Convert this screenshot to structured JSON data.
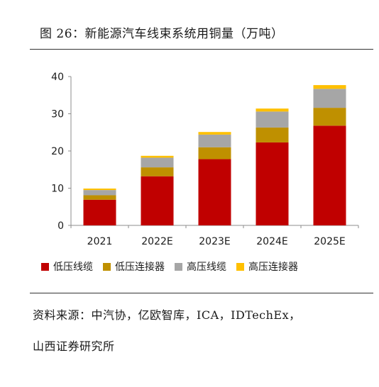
{
  "figure_title": "图 26：新能源汽车线束系统用铜量（万吨）",
  "source": {
    "line1": "资料来源：中汽协，亿欧智库，ICA，IDTechEx，",
    "line2": "山西证券研究所"
  },
  "chart_data": {
    "type": "bar",
    "stacked": true,
    "categories": [
      "2021",
      "2022E",
      "2023E",
      "2024E",
      "2025E"
    ],
    "series": [
      {
        "name": "低压线缆",
        "color": "#C00000",
        "values": [
          6.9,
          13.2,
          17.8,
          22.3,
          26.8
        ]
      },
      {
        "name": "低压连接器",
        "color": "#BF9000",
        "values": [
          1.2,
          2.4,
          3.2,
          4.0,
          4.8
        ]
      },
      {
        "name": "高压线缆",
        "color": "#A6A6A6",
        "values": [
          1.4,
          2.6,
          3.4,
          4.3,
          5.1
        ]
      },
      {
        "name": "高压连接器",
        "color": "#FFC000",
        "values": [
          0.4,
          0.5,
          0.7,
          0.8,
          1.0
        ]
      }
    ],
    "ylim": [
      0,
      40
    ],
    "yticks": [
      0,
      10,
      20,
      30,
      40
    ],
    "grid": false,
    "legend_position": "bottom"
  }
}
